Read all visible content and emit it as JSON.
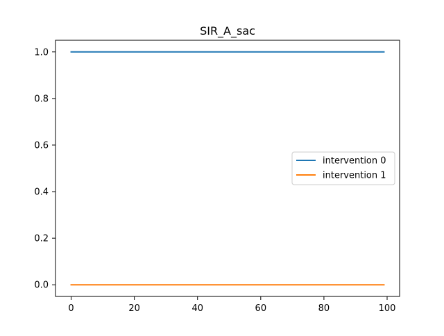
{
  "chart_data": {
    "type": "line",
    "title": "SIR_A_sac",
    "xlabel": "",
    "ylabel": "",
    "xlim": [
      -4.95,
      103.95
    ],
    "ylim": [
      -0.05,
      1.05
    ],
    "xticks": [
      0,
      20,
      40,
      60,
      80,
      100
    ],
    "yticks": [
      0.0,
      0.2,
      0.4,
      0.6,
      0.8,
      1.0
    ],
    "xtick_labels": [
      "0",
      "20",
      "40",
      "60",
      "80",
      "100"
    ],
    "ytick_labels": [
      "0.0",
      "0.2",
      "0.4",
      "0.6",
      "0.8",
      "1.0"
    ],
    "grid": false,
    "legend_position": "center-right",
    "series": [
      {
        "name": "intervention 0",
        "color": "#1f77b4",
        "x": [
          0,
          99
        ],
        "y": [
          1.0,
          1.0
        ]
      },
      {
        "name": "intervention 1",
        "color": "#ff7f0e",
        "x": [
          0,
          99
        ],
        "y": [
          0.0,
          0.0
        ]
      }
    ]
  }
}
